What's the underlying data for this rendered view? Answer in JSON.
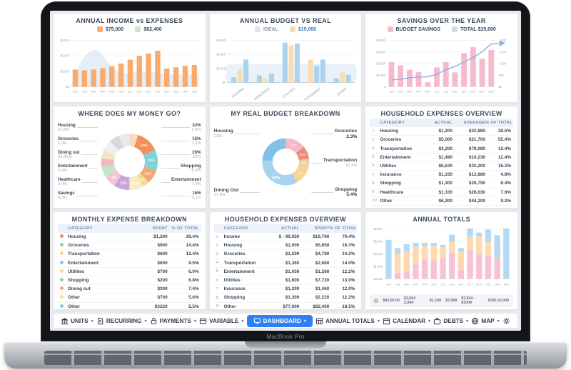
{
  "device": {
    "name": "MacBook Pro"
  },
  "colors": {
    "accent_blue": "#2e81f4"
  },
  "dashboard": {
    "cards": {
      "income": {
        "title": "ANNUAL INCOME vs EXPENSES",
        "legend": [
          {
            "label": "$75,000",
            "color": "#f9ab6e"
          },
          {
            "label": "$62,400",
            "color": "#cfe2cb"
          }
        ],
        "chart_data": {
          "type": "bar",
          "x": [
            "JAN",
            "FEB",
            "MAR",
            "APR",
            "MAY",
            "JUN",
            "JUL",
            "AUG",
            "SEP",
            "OCT",
            "NOV",
            "DEC",
            "JAN",
            "FEB"
          ],
          "values": [
            2300,
            2200,
            2300,
            2500,
            2750,
            3100,
            3600,
            4100,
            4450,
            4800,
            2450,
            2600,
            2800,
            2900
          ],
          "ylabels": [
            "$5,000",
            "$5,000",
            "$5,000",
            "$0"
          ],
          "ylim": [
            0,
            6000
          ],
          "bar_color": "#f9ab6e",
          "area_color": "#dce8f2"
        }
      },
      "budget": {
        "title": "ANNUAL BUDGET VS REAL",
        "legend": [
          {
            "label": "IDEAL",
            "color": "#e4e4e8",
            "text_color": "#8a94a8"
          },
          {
            "label": "$15,060",
            "color": "#f8ddb4",
            "text_color": "#3779c2"
          }
        ],
        "chart_data": {
          "type": "grouped-bar",
          "categories": [
            "HOUSING",
            "GROCERIES",
            "UTILITIES",
            "ENTERTAINMENT",
            "OTHER"
          ],
          "ylabels": [
            "$5,000",
            "$5,000",
            "$5,000",
            "$0"
          ],
          "series_colors": {
            "blue": "#a9d3ee",
            "beige": "#f8ddb4"
          },
          "groups": [
            [
              {
                "v": 12,
                "c": "blue"
              },
              {
                "v": 30,
                "c": "beige"
              },
              {
                "v": 52,
                "c": "blue"
              }
            ],
            [
              {
                "v": 16,
                "c": "blue"
              },
              {
                "v": 10,
                "c": "beige"
              },
              {
                "v": 20,
                "c": "blue"
              }
            ],
            [
              {
                "v": 90,
                "c": "blue"
              },
              {
                "v": 84,
                "c": "beige"
              },
              {
                "v": 88,
                "c": "blue"
              }
            ],
            [
              {
                "v": 52,
                "c": "beige"
              },
              {
                "v": 38,
                "c": "blue"
              },
              {
                "v": 52,
                "c": "blue"
              }
            ],
            [
              {
                "v": 10,
                "c": "blue"
              },
              {
                "v": 24,
                "c": "beige"
              },
              {
                "v": 18,
                "c": "blue"
              }
            ]
          ]
        }
      },
      "savings": {
        "title": "SAVINGS OVER THE YEAR",
        "legend": [
          {
            "label": "BUDGET SAVINGS",
            "color": "#f5bace"
          },
          {
            "label": "TOTAL  $15,000",
            "color": "#d9d7f0"
          }
        ],
        "chart_data": {
          "type": "bar+line",
          "x": [
            "JAN",
            "FEB",
            "MAR",
            "APR",
            "MAY",
            "JUN",
            "JUL",
            "AUG",
            "SEP",
            "OCT",
            "NOV",
            "DEC"
          ],
          "bars": [
            2750,
            2400,
            1900,
            1650,
            500,
            2150,
            2750,
            1600,
            3750,
            4400,
            3100,
            4100
          ],
          "line": [
            750,
            850,
            1000,
            1100,
            1100,
            1400,
            1900,
            2250,
            2750,
            3250,
            3900,
            4750
          ],
          "ylabels_left": [
            "$5,000",
            "$4,000",
            "$2,000",
            "$1,000",
            "0"
          ],
          "ylabels_right": [
            "1,000",
            "1,000",
            "1,000",
            "000",
            "$5"
          ],
          "ylim": [
            0,
            5000
          ],
          "bar_color": "#f5bace",
          "line_color": "#85b4e4"
        }
      },
      "money_go": {
        "title": "WHERE DOES MY MONEY GO?",
        "left_labels": [
          {
            "label": "Housing",
            "sub": "51.8%"
          },
          {
            "label": "Groceries",
            "sub": "6.3%"
          },
          {
            "label": "Dining out",
            "sub": "41.20%"
          },
          {
            "label": "Entertainment",
            "sub": "9.9%"
          },
          {
            "label": "Healthcare",
            "sub": "3.9%"
          },
          {
            "label": "Savings",
            "sub": "4.9%"
          }
        ],
        "right_labels": [
          {
            "label": "32%",
            "sub": "2.0%"
          },
          {
            "label": "15%",
            "sub": "1.2%"
          },
          {
            "label": "26%",
            "sub": "23%"
          },
          {
            "label": "Shopping",
            "sub": "9.9%"
          },
          {
            "label": "Entertainment",
            "sub": "7.0%"
          },
          {
            "label": "16%",
            "sub": "0.1%"
          }
        ],
        "chart_data": {
          "type": "pie",
          "segments": [
            {
              "arc": 5,
              "color": "#f7ddbd",
              "label": ""
            },
            {
              "arc": 13,
              "color": "#f0915f",
              "label": "22%"
            },
            {
              "arc": 12,
              "color": "#7fd3da",
              "label": "22%"
            },
            {
              "arc": 8,
              "color": "#f2a874",
              "label": "12%"
            },
            {
              "arc": 4,
              "color": "#f6d98c",
              "label": "2%"
            },
            {
              "arc": 8,
              "color": "#f9ecc0",
              "label": "12%"
            },
            {
              "arc": 9,
              "color": "#c9a6da",
              "label": "11%"
            },
            {
              "arc": 7,
              "color": "#f6c3d6",
              "label": "7%"
            },
            {
              "arc": 6,
              "color": "#c2e5c6",
              "label": ""
            },
            {
              "arc": 5,
              "color": "#f2b9c2",
              "label": ""
            },
            {
              "arc": 5,
              "color": "#f3e6c8",
              "label": ""
            },
            {
              "arc": 6,
              "color": "#efeff2",
              "label": ""
            },
            {
              "arc": 6,
              "color": "#d9dade",
              "label": ""
            },
            {
              "arc": 6,
              "color": "#e9e9ee",
              "label": ""
            }
          ]
        }
      },
      "real_budget": {
        "title": "MY REAL BUDGET BREAKDOWN",
        "left_labels": [
          {
            "label": "Housing",
            "sub": "23%"
          },
          {
            "label": "Dining Out",
            "sub": "17.8%"
          }
        ],
        "right_labels": [
          {
            "label": "Groceries",
            "sub": "2.3%",
            "bold": true
          },
          {
            "label": "Transportation",
            "sub": "12.2%"
          },
          {
            "label": "Shopping",
            "sub": "5.4%",
            "bold": true
          }
        ],
        "chart_data": {
          "type": "pie",
          "segments": [
            {
              "arc": 14,
              "color": "#f7b8c3",
              "label": "6.5%"
            },
            {
              "arc": 9,
              "color": "#ef8a76",
              "label": "8.2%"
            },
            {
              "arc": 7,
              "color": "#f0cfa4",
              "label": "8%"
            },
            {
              "arc": 12,
              "color": "#f6d690",
              "label": "12%"
            },
            {
              "arc": 34,
              "color": "#a6d3ee",
              "label": "36%",
              "big": true
            },
            {
              "arc": 24,
              "color": "#82c0e8",
              "label": ""
            }
          ]
        }
      },
      "household1": {
        "title": "HOUSEHOLD EXPENSES OVERVIEW",
        "columns": [
          "CATEGORY",
          "ACTUAL",
          "AVERAGE",
          "% OF TOTAL"
        ],
        "rows": [
          [
            "1",
            "Housing",
            "$1,200",
            "$22,880",
            "28.6%"
          ],
          [
            "2",
            "Groceries",
            "$5,000",
            "$21,700",
            "55.4%"
          ],
          [
            "4",
            "Transportation",
            "$3,200",
            "$78,080",
            "12.4%"
          ],
          [
            "5",
            "Entertainment",
            "$1,490",
            "$16,230",
            "12.4%"
          ],
          [
            "6",
            "Utilities",
            "$6,530",
            "$32,200",
            "16.2%"
          ],
          [
            "7",
            "Insurance",
            "$1,330",
            "$12,880",
            "4.8%"
          ],
          [
            "8",
            "Shopping",
            "$1,300",
            "$28,790",
            "6.4%"
          ],
          [
            "9",
            "Healthcare",
            "$1,330",
            "$28,030",
            "7.6%"
          ],
          [
            "10",
            "Other",
            "$6,200",
            "$44,200",
            "9.2%"
          ]
        ]
      },
      "monthly": {
        "title": "MONTHLY EXPENSE BREAKDOWN",
        "columns": [
          "CATEGORY",
          "SPENT",
          "% OF TOTAL"
        ],
        "rows": [
          [
            "#ef8a76",
            "Housing",
            "$1,200",
            "30.4%"
          ],
          [
            "#8fd19a",
            "Groceries",
            "$900",
            "14.4%"
          ],
          [
            "#f6d690",
            "Transportation",
            "$600",
            "12.4%"
          ],
          [
            "#8ec7e8",
            "Entertainment",
            "$600",
            "9.5%"
          ],
          [
            "#f6d690",
            "Utilities",
            "$700",
            "6.0%"
          ],
          [
            "#8fd19a",
            "Shopping",
            "$200",
            "6.8%"
          ],
          [
            "#f2a874",
            "Dining out",
            "$300",
            "7.4%"
          ],
          [
            "#f3e08c",
            "Other",
            "$700",
            "5.6%"
          ],
          [
            "#8ec7e8",
            "Other",
            "$3220",
            "5.5%"
          ]
        ]
      },
      "household2": {
        "title": "HOUSEHOLD EXPENSES OVERVIEW",
        "columns": [
          "CATEGORY",
          "ACTUAL",
          "SPENT",
          "% OF TOTAL"
        ],
        "rows": [
          [
            "1",
            "Income",
            "$ - 99,050",
            "$19,760",
            "70.4%"
          ],
          [
            "2",
            "Housing",
            "$1,000",
            "$5,850",
            "16.3%"
          ],
          [
            "3",
            "Groceries",
            "$1,500",
            "$4,780",
            "14.2%"
          ],
          [
            "4",
            "Transportation",
            "$1,360",
            "$2,680",
            "14.0%"
          ],
          [
            "5",
            "Entertainment",
            "$1,050",
            "$1,260",
            "12.2%"
          ],
          [
            "6",
            "Utilities",
            "$1,600",
            "$7,720",
            "13.0%"
          ],
          [
            "7",
            "Insurance",
            "$1,300",
            "$1,460",
            "12.0%"
          ],
          [
            "8",
            "Shopping",
            "$1,300",
            "$2,220",
            "12.2%"
          ],
          [
            "9",
            "Other",
            "$77,000",
            "$82,400",
            "18.5%"
          ]
        ]
      },
      "annual_totals": {
        "title": "ANNUAL TOTALS",
        "chart_data": {
          "type": "stacked-bar",
          "x": [
            "JAN",
            "FEB",
            "MAR",
            "APR",
            "MAY",
            "JUN",
            "JUL",
            "AUG",
            "SEP",
            "OCT",
            "NOV",
            "DEC",
            "JAN",
            "FEB"
          ],
          "ylabels": [
            "$3,300",
            "$5,000",
            "$3,200",
            "$1,000",
            "$4,500"
          ],
          "series": [
            {
              "name": "pink",
              "color": "#f9c2d4",
              "values": [
                0,
                12,
                14,
                28,
                38,
                36,
                42,
                50,
                18,
                56,
                48,
                44,
                40,
                0
              ]
            },
            {
              "name": "orange",
              "color": "#fcd9ae",
              "values": [
                0,
                38,
                40,
                34,
                26,
                28,
                20,
                22,
                36,
                26,
                34,
                28,
                0,
                0
              ]
            },
            {
              "name": "blue",
              "color": "#b4d9f2",
              "values": [
                76,
                10,
                14,
                8,
                6,
                6,
                4,
                14,
                6,
                16,
                8,
                24,
                45,
                98
              ]
            }
          ],
          "footer": [
            "$83.00.00",
            "$3,504 · 2,004",
            "$1,108",
            "$3,008",
            "$3,834 · $1004",
            "$100.03,000"
          ]
        }
      }
    },
    "nav": {
      "items": [
        {
          "icon": "bank-icon",
          "label": "UNITS",
          "caret": true
        },
        {
          "icon": "receipt-icon",
          "label": "RECURRING",
          "caret": true
        },
        {
          "icon": "lock-icon",
          "label": "PAYMENTS",
          "caret": true
        },
        {
          "icon": "card-icon",
          "label": "VARIABLE",
          "caret": true
        },
        {
          "icon": "monitor-icon",
          "label": "DASHBOARD",
          "caret": true,
          "active": true
        },
        {
          "icon": "grid-icon",
          "label": "ANNUAL TOTALS",
          "caret": true
        },
        {
          "icon": "calendar-icon",
          "label": "CALENDAR",
          "caret": true
        },
        {
          "icon": "bag-icon",
          "label": "DEBTS",
          "caret": true
        },
        {
          "icon": "globe-icon",
          "label": "MAP",
          "caret": true
        },
        {
          "icon": "gear-icon",
          "label": "",
          "caret": false
        }
      ]
    }
  }
}
